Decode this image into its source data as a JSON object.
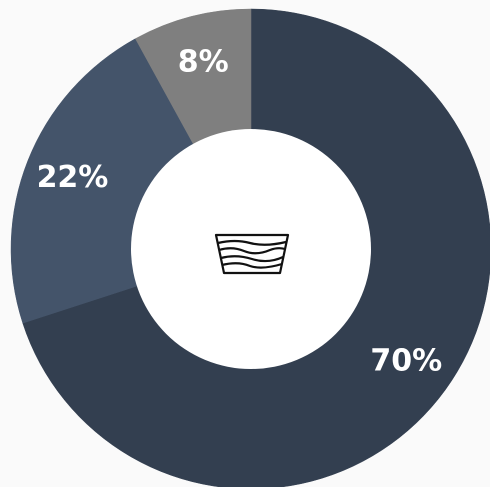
{
  "chart_data": {
    "type": "donut",
    "values": [
      70,
      22,
      8
    ],
    "value_labels": [
      "70%",
      "22%",
      "8%"
    ],
    "colors": [
      "#333f50",
      "#44546a",
      "#7f7f7f"
    ]
  }
}
